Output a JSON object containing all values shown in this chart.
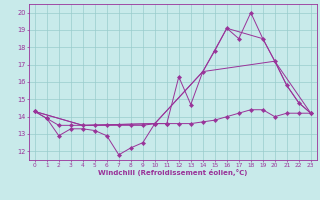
{
  "xlabel": "Windchill (Refroidissement éolien,°C)",
  "bg_color": "#c8eaea",
  "line_color": "#993399",
  "grid_color": "#99cccc",
  "xlim": [
    -0.5,
    23.5
  ],
  "ylim": [
    11.5,
    20.5
  ],
  "xticks": [
    0,
    1,
    2,
    3,
    4,
    5,
    6,
    7,
    8,
    9,
    10,
    11,
    12,
    13,
    14,
    15,
    16,
    17,
    18,
    19,
    20,
    21,
    22,
    23
  ],
  "yticks": [
    12,
    13,
    14,
    15,
    16,
    17,
    18,
    19,
    20
  ],
  "line1_x": [
    0,
    1,
    2,
    3,
    4,
    5,
    6,
    7,
    8,
    9,
    10,
    11,
    12,
    13,
    14,
    15,
    16,
    17,
    18,
    19,
    20,
    21,
    22,
    23
  ],
  "line1_y": [
    14.3,
    13.9,
    12.9,
    13.3,
    13.3,
    13.2,
    12.9,
    11.8,
    12.2,
    12.5,
    13.6,
    13.6,
    16.3,
    14.7,
    16.6,
    17.8,
    19.1,
    18.5,
    20.0,
    18.5,
    17.2,
    15.8,
    14.8,
    14.2
  ],
  "line2_x": [
    0,
    1,
    2,
    3,
    4,
    5,
    6,
    7,
    8,
    9,
    10,
    11,
    12,
    13,
    14,
    15,
    16,
    17,
    18,
    19,
    20,
    21,
    22,
    23
  ],
  "line2_y": [
    14.3,
    13.9,
    13.5,
    13.5,
    13.5,
    13.5,
    13.5,
    13.5,
    13.5,
    13.5,
    13.6,
    13.6,
    13.6,
    13.6,
    13.7,
    13.8,
    14.0,
    14.2,
    14.4,
    14.4,
    14.0,
    14.2,
    14.2,
    14.2
  ],
  "line3_x": [
    0,
    4,
    10,
    14,
    20,
    23
  ],
  "line3_y": [
    14.3,
    13.5,
    13.6,
    16.6,
    17.2,
    14.2
  ],
  "line4_x": [
    0,
    4,
    10,
    14,
    16,
    19,
    20,
    21,
    22,
    23
  ],
  "line4_y": [
    14.3,
    13.5,
    13.6,
    16.6,
    19.1,
    18.5,
    17.2,
    15.8,
    14.8,
    14.2
  ]
}
